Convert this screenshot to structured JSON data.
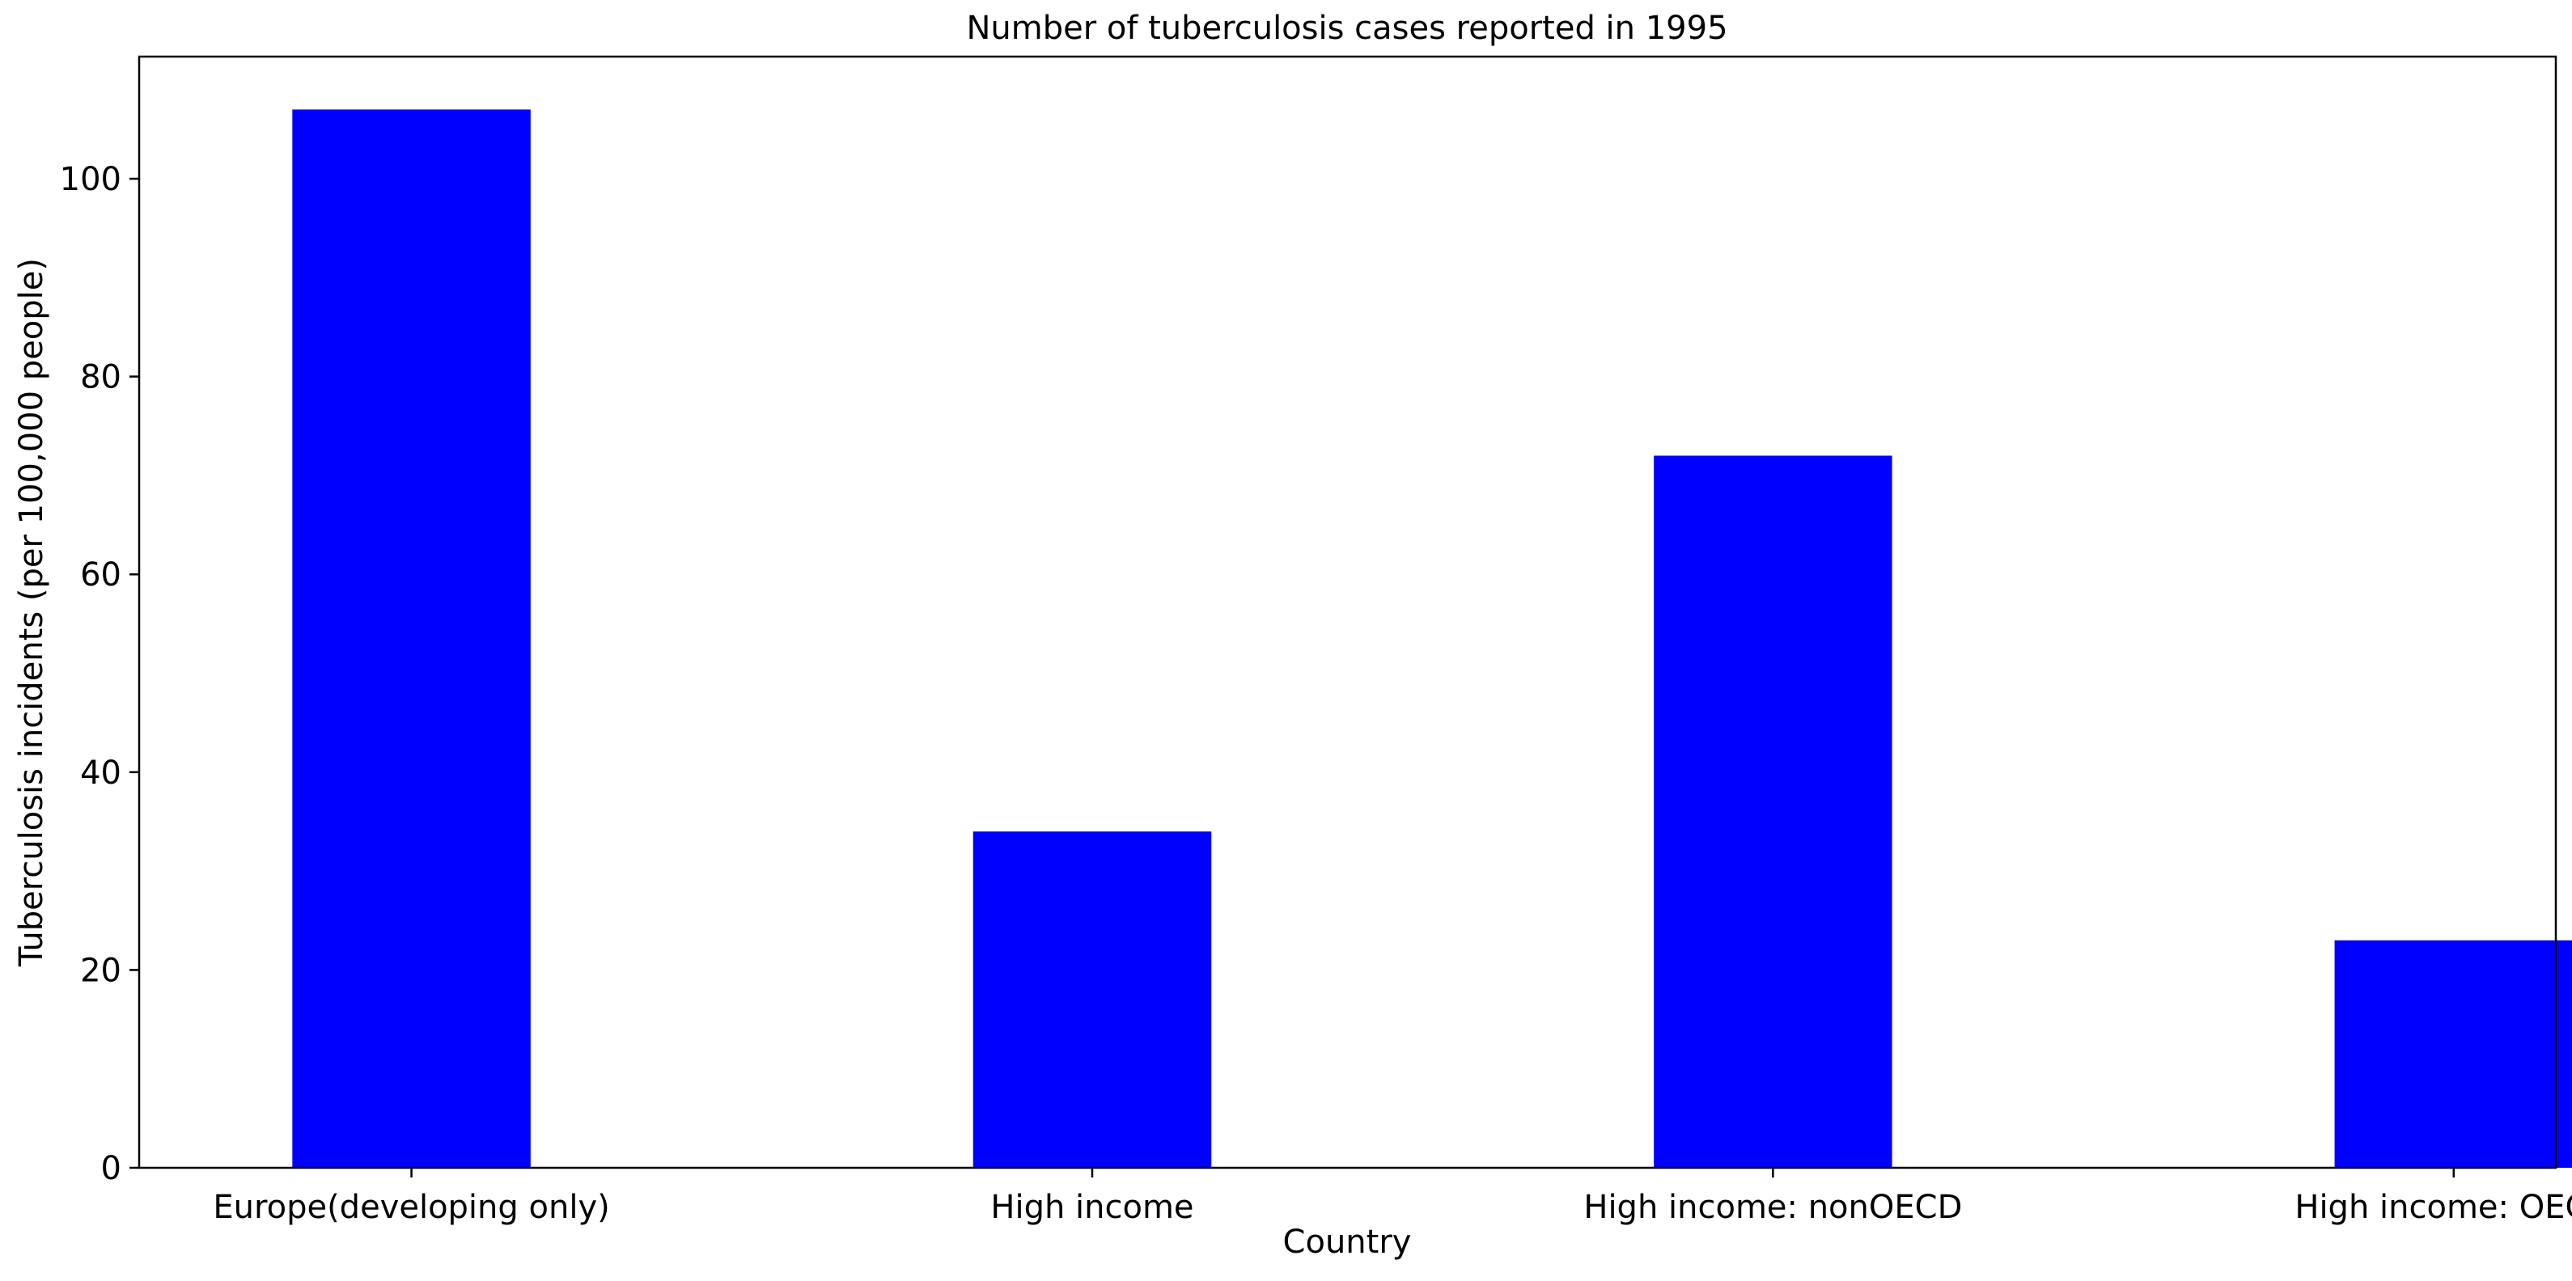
{
  "chart_data": {
    "type": "bar",
    "title": "Number of tuberculosis cases reported in 1995",
    "xlabel": "Country",
    "ylabel": "Tuberculosis incidents (per 100,000 people)",
    "categories": [
      "Europe(developing only)",
      "High income",
      "High income: nonOECD",
      "High income: OECD"
    ],
    "values": [
      107,
      34,
      72,
      23
    ],
    "ylim": [
      0,
      112.35
    ],
    "yticks": [
      0,
      20,
      40,
      60,
      80,
      100
    ],
    "bar_color": "#0000ff",
    "grid": false,
    "legend": "none"
  }
}
